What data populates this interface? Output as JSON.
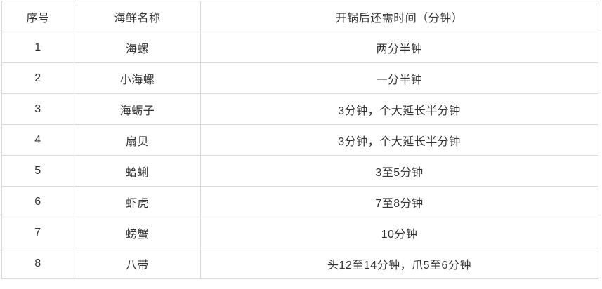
{
  "table": {
    "columns": [
      {
        "key": "num",
        "label": "序号"
      },
      {
        "key": "name",
        "label": "海鲜名称"
      },
      {
        "key": "time",
        "label": "开锅后还需时间（分钟）"
      }
    ],
    "rows": [
      {
        "num": "1",
        "name": "海螺",
        "time": "两分半钟"
      },
      {
        "num": "2",
        "name": "小海螺",
        "time": "一分半钟"
      },
      {
        "num": "3",
        "name": "海蛎子",
        "time": "3分钟，个大延长半分钟"
      },
      {
        "num": "4",
        "name": "扇贝",
        "time": "3分钟，个大延长半分钟"
      },
      {
        "num": "5",
        "name": "蛤蜊",
        "time": "3至5分钟"
      },
      {
        "num": "6",
        "name": "虾虎",
        "time": "7至8分钟"
      },
      {
        "num": "7",
        "name": "螃蟹",
        "time": "10分钟"
      },
      {
        "num": "8",
        "name": "八带",
        "time": "头12至14分钟，爪5至6分钟"
      }
    ],
    "colors": {
      "text": "#333333",
      "border": "#d9d9d9",
      "background": "#ffffff"
    }
  }
}
